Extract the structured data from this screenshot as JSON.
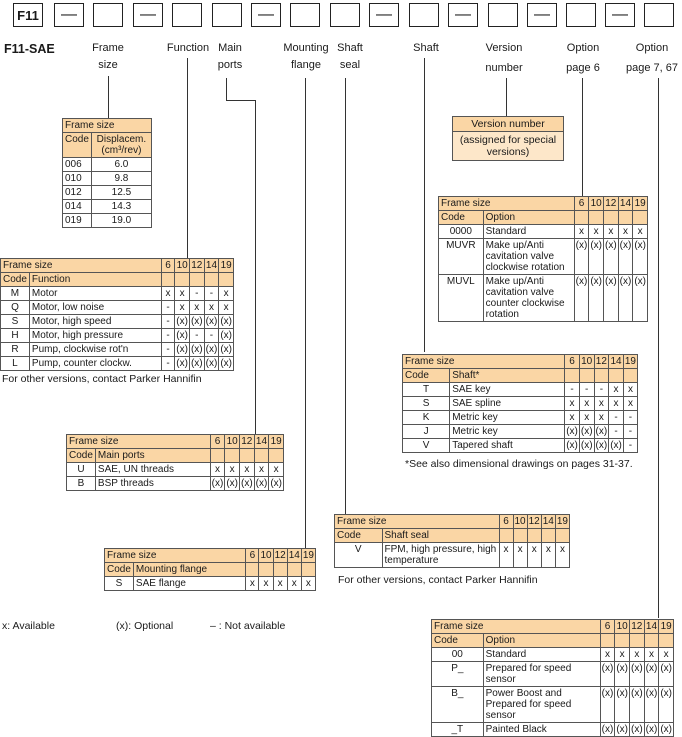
{
  "model_code": {
    "first_box": "F11",
    "dash": "—",
    "series_label": "F11-SAE"
  },
  "headers": {
    "frame": [
      "Frame",
      "size"
    ],
    "function": [
      "Function"
    ],
    "main_ports": [
      "Main",
      "ports"
    ],
    "mounting": [
      "Mounting",
      "flange"
    ],
    "shaft_seal": [
      "Shaft",
      "seal"
    ],
    "shaft": [
      "Shaft"
    ],
    "version": [
      "Version",
      "number"
    ],
    "option1": [
      "Option",
      "page 6"
    ],
    "option2": [
      "Option",
      "page 7, 67"
    ]
  },
  "frame_table": {
    "caption": "Frame size",
    "col1": "Code",
    "col2": "Displacem. (cm³/rev)",
    "rows": [
      [
        "006",
        "6.0"
      ],
      [
        "010",
        "9.8"
      ],
      [
        "012",
        "12.5"
      ],
      [
        "014",
        "14.3"
      ],
      [
        "019",
        "19.0"
      ]
    ]
  },
  "sizes": [
    "6",
    "10",
    "12",
    "14",
    "19"
  ],
  "function_table": {
    "caption": "Frame size",
    "col_code": "Code",
    "col_label": "Function",
    "rows": [
      {
        "code": "M",
        "label": "Motor",
        "v": [
          "x",
          "x",
          "-",
          "-",
          "x"
        ]
      },
      {
        "code": "Q",
        "label": "Motor, low noise",
        "v": [
          "-",
          "x",
          "x",
          "x",
          "x"
        ]
      },
      {
        "code": "S",
        "label": "Motor, high speed",
        "v": [
          "-",
          "(x)",
          "(x)",
          "(x)",
          "(x)"
        ]
      },
      {
        "code": "H",
        "label": "Motor, high pressure",
        "v": [
          "-",
          "(x)",
          "-",
          "-",
          "(x)"
        ]
      },
      {
        "code": "R",
        "label": "Pump, clockwise rot'n",
        "v": [
          "-",
          "(x)",
          "(x)",
          "(x)",
          "(x)"
        ]
      },
      {
        "code": "L",
        "label": "Pump, counter clockw.",
        "v": [
          "-",
          "(x)",
          "(x)",
          "(x)",
          "(x)"
        ]
      }
    ],
    "note": "For other versions, contact Parker Hannifin"
  },
  "ports_table": {
    "caption": "Frame size",
    "col_code": "Code",
    "col_label": "Main ports",
    "rows": [
      {
        "code": "U",
        "label": "SAE, UN threads",
        "v": [
          "x",
          "x",
          "x",
          "x",
          "x"
        ]
      },
      {
        "code": "B",
        "label": "BSP threads",
        "v": [
          "(x)",
          "(x)",
          "(x)",
          "(x)",
          "(x)"
        ]
      }
    ]
  },
  "mount_table": {
    "caption": "Frame size",
    "col_code": "Code",
    "col_label": "Mounting flange",
    "rows": [
      {
        "code": "S",
        "label": "SAE flange",
        "v": [
          "x",
          "x",
          "x",
          "x",
          "x"
        ]
      }
    ]
  },
  "seal_table": {
    "caption": "Frame size",
    "col_code": "Code",
    "col_label": "Shaft seal",
    "rows": [
      {
        "code": "V",
        "label": "FPM, high pressure, high temperature",
        "v": [
          "x",
          "x",
          "x",
          "x",
          "x"
        ]
      }
    ],
    "note": "For other versions, contact Parker Hannifin"
  },
  "shaft_table": {
    "caption": "Frame size",
    "col_code": "Code",
    "col_label": "Shaft*",
    "rows": [
      {
        "code": "T",
        "label": "SAE key",
        "v": [
          "-",
          "-",
          "-",
          "x",
          "x"
        ]
      },
      {
        "code": "S",
        "label": "SAE spline",
        "v": [
          "x",
          "x",
          "x",
          "x",
          "x"
        ]
      },
      {
        "code": "K",
        "label": "Metric key",
        "v": [
          "x",
          "x",
          "x",
          "-",
          "-"
        ]
      },
      {
        "code": "J",
        "label": "Metric key",
        "v": [
          "(x)",
          "(x)",
          "(x)",
          "-",
          "-"
        ]
      },
      {
        "code": "V",
        "label": "Tapered shaft",
        "v": [
          "(x)",
          "(x)",
          "(x)",
          "(x)",
          "-"
        ]
      }
    ],
    "note": "*See also dimensional drawings on pages 31-37."
  },
  "version_box": {
    "title": "Version number",
    "body": "(assigned for special versions)"
  },
  "option1_table": {
    "caption": "Frame size",
    "col_code": "Code",
    "col_label": "Option",
    "rows": [
      {
        "code": "0000",
        "label": "Standard",
        "v": [
          "x",
          "x",
          "x",
          "x",
          "x"
        ]
      },
      {
        "code": "MUVR",
        "label": "Make up/Anti cavitation valve clockwise rotation",
        "v": [
          "(x)",
          "(x)",
          "(x)",
          "(x)",
          "(x)"
        ]
      },
      {
        "code": "MUVL",
        "label": "Make up/Anti cavitation valve counter clockwise rotation",
        "v": [
          "(x)",
          "(x)",
          "(x)",
          "(x)",
          "(x)"
        ]
      }
    ]
  },
  "option2_table": {
    "caption": "Frame size",
    "col_code": "Code",
    "col_label": "Option",
    "rows": [
      {
        "code": "00",
        "label": "Standard",
        "v": [
          "x",
          "x",
          "x",
          "x",
          "x"
        ]
      },
      {
        "code": "P_",
        "label": "Prepared for speed sensor",
        "v": [
          "(x)",
          "(x)",
          "(x)",
          "(x)",
          "(x)"
        ]
      },
      {
        "code": "B_",
        "label": "Power Boost and Prepared for speed sensor",
        "v": [
          "(x)",
          "(x)",
          "(x)",
          "(x)",
          "(x)"
        ]
      },
      {
        "code": "_T",
        "label": "Painted Black",
        "v": [
          "(x)",
          "(x)",
          "(x)",
          "(x)",
          "(x)"
        ]
      }
    ]
  },
  "legend": {
    "available": "x:  Available",
    "optional": "(x): Optional",
    "not_available": "– :  Not available"
  }
}
